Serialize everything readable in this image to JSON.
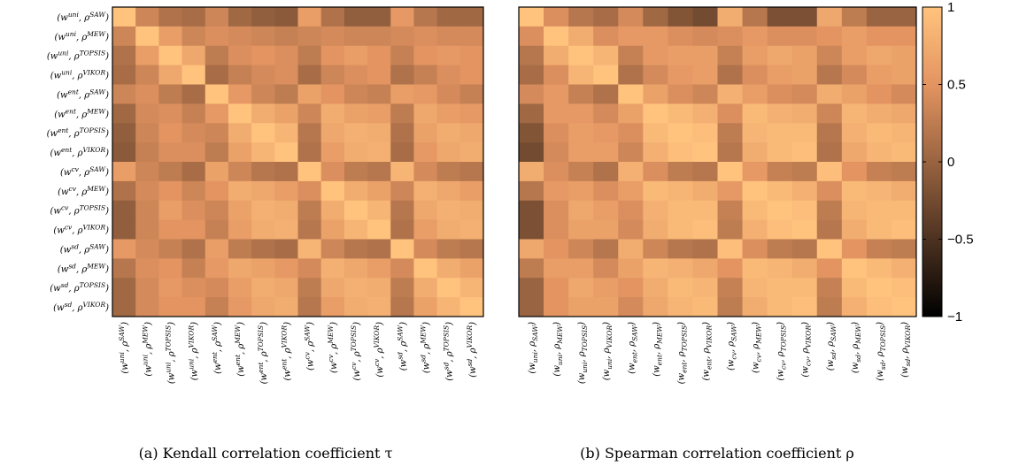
{
  "chart_data": [
    {
      "type": "heatmap",
      "caption": "(a) Kendall correlation coefficient τ",
      "row_labels": [
        "(w^uni, ρ^SAW)",
        "(w^uni, ρ^MEW)",
        "(w^uni, ρ^TOPSIS)",
        "(w^uni, ρ^VIKOR)",
        "(w^ent, ρ^SAW)",
        "(w^ent, ρ^MEW)",
        "(w^ent, ρ^TOPSIS)",
        "(w^ent, ρ^VIKOR)",
        "(w^cv, ρ^SAW)",
        "(w^cv, ρ^MEW)",
        "(w^cv, ρ^TOPSIS)",
        "(w^cv, ρ^VIKOR)",
        "(w^sd, ρ^SAW)",
        "(w^sd, ρ^MEW)",
        "(w^sd, ρ^TOPSIS)",
        "(w^sd, ρ^VIKOR)"
      ],
      "col_labels": [
        "(w^uni, ρ^SAW)",
        "(w^uni, ρ^MEW)",
        "(w^uni, ρ^TOPSIS)",
        "(w^uni, ρ^VIKOR)",
        "(w^ent, ρ^SAW)",
        "(w^ent, ρ^MEW)",
        "(w^ent, ρ^TOPSIS)",
        "(w^ent, ρ^VIKOR)",
        "(w^cv, ρ^SAW)",
        "(w^cv, ρ^MEW)",
        "(w^cv, ρ^TOPSIS)",
        "(w^cv, ρ^VIKOR)",
        "(w^sd, ρ^SAW)",
        "(w^sd, ρ^MEW)",
        "(w^sd, ρ^TOPSIS)",
        "(w^sd, ρ^VIKOR)"
      ],
      "values": [
        [
          1.0,
          0.35,
          0.15,
          0.1,
          0.35,
          0.05,
          -0.05,
          -0.1,
          0.6,
          0.15,
          -0.05,
          -0.05,
          0.55,
          0.2,
          0.05,
          0.05
        ],
        [
          0.35,
          1.0,
          0.6,
          0.35,
          0.45,
          0.4,
          0.35,
          0.3,
          0.35,
          0.4,
          0.35,
          0.35,
          0.4,
          0.45,
          0.4,
          0.4
        ],
        [
          0.15,
          0.6,
          1.0,
          0.7,
          0.25,
          0.45,
          0.5,
          0.45,
          0.25,
          0.5,
          0.6,
          0.5,
          0.3,
          0.5,
          0.55,
          0.5
        ],
        [
          0.1,
          0.35,
          0.7,
          1.0,
          0.1,
          0.3,
          0.4,
          0.45,
          0.1,
          0.35,
          0.45,
          0.5,
          0.15,
          0.3,
          0.45,
          0.5
        ],
        [
          0.35,
          0.45,
          0.25,
          0.1,
          1.0,
          0.55,
          0.35,
          0.25,
          0.65,
          0.5,
          0.35,
          0.3,
          0.6,
          0.55,
          0.4,
          0.3
        ],
        [
          0.05,
          0.4,
          0.45,
          0.3,
          0.55,
          1.0,
          0.75,
          0.65,
          0.35,
          0.75,
          0.65,
          0.6,
          0.25,
          0.7,
          0.6,
          0.55
        ],
        [
          -0.05,
          0.35,
          0.5,
          0.4,
          0.35,
          0.75,
          1.0,
          0.85,
          0.2,
          0.7,
          0.8,
          0.75,
          0.15,
          0.65,
          0.75,
          0.7
        ],
        [
          -0.1,
          0.3,
          0.45,
          0.45,
          0.25,
          0.65,
          0.85,
          1.0,
          0.15,
          0.6,
          0.75,
          0.8,
          0.1,
          0.55,
          0.7,
          0.75
        ],
        [
          0.6,
          0.35,
          0.25,
          0.1,
          0.65,
          0.35,
          0.2,
          0.15,
          1.0,
          0.45,
          0.25,
          0.2,
          0.85,
          0.4,
          0.25,
          0.2
        ],
        [
          0.15,
          0.4,
          0.5,
          0.35,
          0.5,
          0.75,
          0.7,
          0.6,
          0.45,
          1.0,
          0.75,
          0.65,
          0.35,
          0.8,
          0.7,
          0.6
        ],
        [
          -0.05,
          0.35,
          0.6,
          0.45,
          0.35,
          0.65,
          0.8,
          0.75,
          0.25,
          0.75,
          1.0,
          0.85,
          0.2,
          0.7,
          0.8,
          0.75
        ],
        [
          -0.05,
          0.35,
          0.5,
          0.5,
          0.3,
          0.6,
          0.75,
          0.8,
          0.2,
          0.65,
          0.85,
          1.0,
          0.15,
          0.6,
          0.75,
          0.8
        ],
        [
          0.55,
          0.4,
          0.3,
          0.15,
          0.6,
          0.25,
          0.15,
          0.1,
          0.85,
          0.35,
          0.2,
          0.15,
          1.0,
          0.4,
          0.25,
          0.2
        ],
        [
          0.2,
          0.45,
          0.5,
          0.3,
          0.55,
          0.7,
          0.65,
          0.55,
          0.4,
          0.8,
          0.7,
          0.6,
          0.4,
          1.0,
          0.75,
          0.65
        ],
        [
          0.05,
          0.4,
          0.55,
          0.45,
          0.4,
          0.6,
          0.75,
          0.7,
          0.25,
          0.7,
          0.8,
          0.75,
          0.25,
          0.75,
          1.0,
          0.85
        ],
        [
          0.05,
          0.4,
          0.5,
          0.5,
          0.3,
          0.55,
          0.7,
          0.75,
          0.2,
          0.6,
          0.75,
          0.8,
          0.2,
          0.65,
          0.85,
          1.0
        ]
      ]
    },
    {
      "type": "heatmap",
      "caption": "(b) Spearman correlation coefficient ρ",
      "row_labels": [],
      "col_labels": [
        "(w_uni, ρ_SAW)",
        "(w_uni, ρ_MEW)",
        "(w_uni, ρ_TOPSIS)",
        "(w_uni, ρ_VIKOR)",
        "(w_ent, ρ_SAW)",
        "(w_ent, ρ_MEW)",
        "(w_ent, ρ_TOPSIS)",
        "(w_ent, ρ_VIKOR)",
        "(w_cv, ρ_SAW)",
        "(w_cv, ρ_MEW)",
        "(w_cv, ρ_TOPSIS)",
        "(w_cv, ρ_VIKOR)",
        "(w_sd, ρ_SAW)",
        "(w_sd, ρ_MEW)",
        "(w_sd, ρ_TOPSIS)",
        "(w_sd, ρ_VIKOR)"
      ],
      "values": [
        [
          1.0,
          0.45,
          0.2,
          0.1,
          0.4,
          0.05,
          -0.15,
          -0.25,
          0.75,
          0.2,
          -0.2,
          -0.2,
          0.7,
          0.25,
          0.0,
          0.0
        ],
        [
          0.45,
          1.0,
          0.75,
          0.45,
          0.55,
          0.55,
          0.45,
          0.4,
          0.45,
          0.55,
          0.45,
          0.45,
          0.5,
          0.6,
          0.5,
          0.5
        ],
        [
          0.2,
          0.75,
          1.0,
          0.85,
          0.3,
          0.55,
          0.6,
          0.6,
          0.3,
          0.6,
          0.7,
          0.65,
          0.35,
          0.6,
          0.7,
          0.65
        ],
        [
          0.1,
          0.45,
          0.85,
          1.0,
          0.15,
          0.4,
          0.55,
          0.6,
          0.15,
          0.45,
          0.6,
          0.65,
          0.2,
          0.4,
          0.6,
          0.65
        ],
        [
          0.4,
          0.55,
          0.3,
          0.15,
          1.0,
          0.65,
          0.45,
          0.35,
          0.8,
          0.6,
          0.45,
          0.4,
          0.75,
          0.65,
          0.5,
          0.4
        ],
        [
          0.05,
          0.55,
          0.55,
          0.4,
          0.65,
          1.0,
          0.9,
          0.8,
          0.45,
          0.9,
          0.8,
          0.75,
          0.35,
          0.85,
          0.75,
          0.7
        ],
        [
          -0.15,
          0.45,
          0.6,
          0.55,
          0.45,
          0.9,
          1.0,
          0.95,
          0.25,
          0.85,
          0.9,
          0.9,
          0.2,
          0.8,
          0.9,
          0.85
        ],
        [
          -0.25,
          0.4,
          0.6,
          0.6,
          0.35,
          0.8,
          0.95,
          1.0,
          0.2,
          0.75,
          0.9,
          0.95,
          0.15,
          0.7,
          0.85,
          0.9
        ],
        [
          0.75,
          0.45,
          0.3,
          0.15,
          0.8,
          0.45,
          0.25,
          0.2,
          1.0,
          0.55,
          0.3,
          0.25,
          0.95,
          0.5,
          0.3,
          0.25
        ],
        [
          0.2,
          0.55,
          0.6,
          0.45,
          0.6,
          0.9,
          0.85,
          0.75,
          0.55,
          1.0,
          0.9,
          0.8,
          0.45,
          0.9,
          0.85,
          0.75
        ],
        [
          -0.2,
          0.45,
          0.7,
          0.6,
          0.45,
          0.8,
          0.9,
          0.9,
          0.3,
          0.9,
          1.0,
          0.95,
          0.25,
          0.85,
          0.9,
          0.9
        ],
        [
          -0.2,
          0.45,
          0.65,
          0.65,
          0.4,
          0.75,
          0.9,
          0.95,
          0.25,
          0.8,
          0.95,
          1.0,
          0.2,
          0.75,
          0.9,
          0.95
        ],
        [
          0.7,
          0.5,
          0.35,
          0.2,
          0.75,
          0.35,
          0.2,
          0.15,
          0.95,
          0.45,
          0.25,
          0.2,
          1.0,
          0.5,
          0.3,
          0.25
        ],
        [
          0.25,
          0.6,
          0.6,
          0.4,
          0.65,
          0.85,
          0.8,
          0.7,
          0.5,
          0.9,
          0.85,
          0.75,
          0.5,
          1.0,
          0.9,
          0.8
        ],
        [
          0.0,
          0.5,
          0.7,
          0.6,
          0.5,
          0.75,
          0.9,
          0.85,
          0.3,
          0.85,
          0.9,
          0.9,
          0.3,
          0.9,
          1.0,
          0.95
        ],
        [
          0.0,
          0.5,
          0.65,
          0.65,
          0.4,
          0.7,
          0.85,
          0.9,
          0.25,
          0.75,
          0.9,
          0.95,
          0.25,
          0.8,
          0.95,
          1.0
        ]
      ]
    }
  ],
  "colorbar": {
    "range": [
      -1,
      1
    ],
    "ticks": [
      "1",
      "0.5",
      "0",
      "−0.5",
      "−1"
    ],
    "colormap": [
      "#000000",
      "#8a5a3a",
      "#e39461",
      "#ffc37d"
    ]
  }
}
